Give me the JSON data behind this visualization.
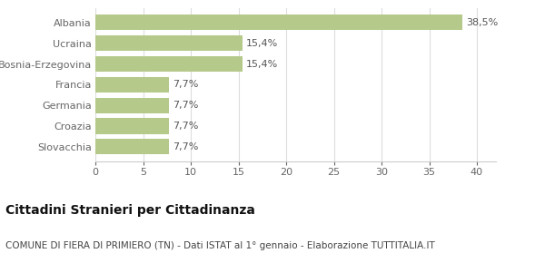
{
  "categories": [
    "Slovacchia",
    "Croazia",
    "Germania",
    "Francia",
    "Bosnia-Erzegovina",
    "Ucraina",
    "Albania"
  ],
  "values": [
    7.7,
    7.7,
    7.7,
    7.7,
    15.4,
    15.4,
    38.5
  ],
  "labels": [
    "7,7%",
    "7,7%",
    "7,7%",
    "7,7%",
    "15,4%",
    "15,4%",
    "38,5%"
  ],
  "bar_color": "#b5c98a",
  "background_color": "#ffffff",
  "xlim": [
    0,
    42
  ],
  "xticks": [
    0,
    5,
    10,
    15,
    20,
    25,
    30,
    35,
    40
  ],
  "title": "Cittadini Stranieri per Cittadinanza",
  "subtitle": "COMUNE DI FIERA DI PRIMIERO (TN) - Dati ISTAT al 1° gennaio - Elaborazione TUTTITALIA.IT",
  "title_fontsize": 10,
  "subtitle_fontsize": 7.5,
  "label_fontsize": 8,
  "ytick_fontsize": 8,
  "xtick_fontsize": 8,
  "bar_height": 0.75,
  "label_color": "#555555",
  "tick_color": "#666666",
  "grid_color": "#dddddd",
  "spine_color": "#cccccc"
}
